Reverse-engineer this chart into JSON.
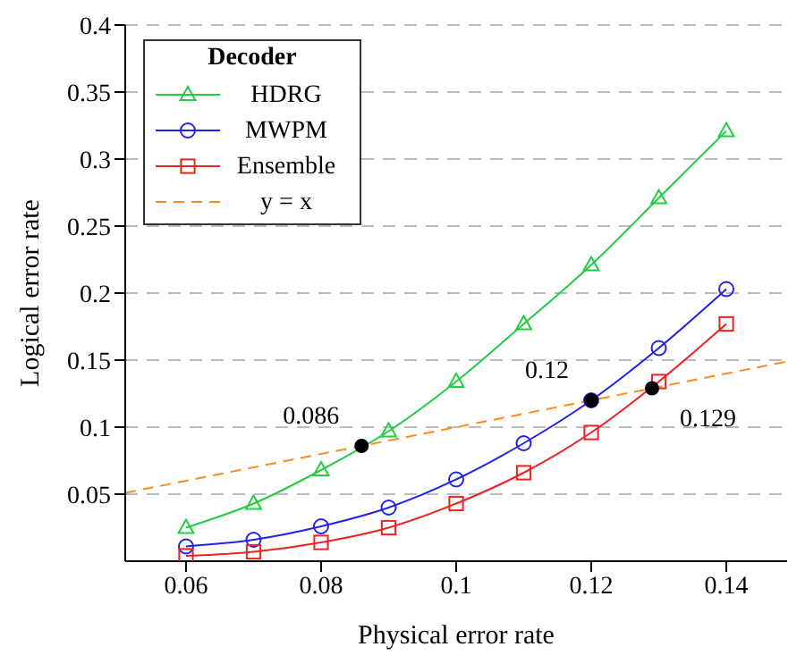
{
  "chart_data": {
    "type": "line",
    "xlabel": "Physical error rate",
    "ylabel": "Logical error rate",
    "legend_title": "Decoder",
    "xlim": [
      0.051,
      0.149
    ],
    "xticks": [
      0.06,
      0.08,
      0.1,
      0.12,
      0.14
    ],
    "ylim": [
      0,
      0.4
    ],
    "yticks": [
      0.05,
      0.1,
      0.15,
      0.2,
      0.25,
      0.3,
      0.35,
      0.4
    ],
    "grid": "y",
    "legend": "top left",
    "series": [
      {
        "name": "HDRG",
        "color": "#22cc44",
        "marker": "triangle",
        "x": [
          0.06,
          0.07,
          0.08,
          0.09,
          0.1,
          0.11,
          0.12,
          0.13,
          0.14
        ],
        "values": [
          0.025,
          0.043,
          0.068,
          0.097,
          0.134,
          0.177,
          0.221,
          0.271,
          0.321
        ]
      },
      {
        "name": "MWPM",
        "color": "#2222ee",
        "marker": "circle",
        "x": [
          0.06,
          0.07,
          0.08,
          0.09,
          0.1,
          0.11,
          0.12,
          0.13,
          0.14
        ],
        "values": [
          0.011,
          0.016,
          0.026,
          0.04,
          0.061,
          0.088,
          0.12,
          0.159,
          0.203
        ]
      },
      {
        "name": "Ensemble",
        "color": "#ee2222",
        "marker": "square",
        "x": [
          0.06,
          0.07,
          0.08,
          0.09,
          0.1,
          0.11,
          0.12,
          0.13,
          0.14
        ],
        "values": [
          0.004,
          0.007,
          0.014,
          0.025,
          0.043,
          0.066,
          0.096,
          0.134,
          0.177
        ]
      },
      {
        "name": "y = x",
        "color": "#ff8c1a",
        "marker": "none",
        "line_style": "dashed",
        "x": [
          0.051,
          0.149
        ],
        "values": [
          0.051,
          0.149
        ]
      },
      {
        "type": "scatter",
        "color": "#000000",
        "marker": "circle",
        "x": [
          0.086,
          0.12,
          0.129
        ],
        "values": [
          0.086,
          0.12,
          0.129
        ],
        "value_labels": [
          "0.086",
          "0.12",
          "0.129"
        ]
      }
    ]
  }
}
